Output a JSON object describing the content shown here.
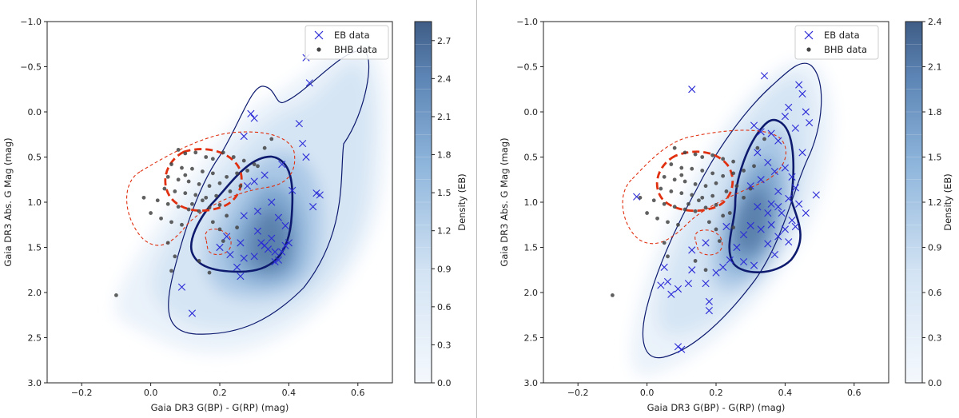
{
  "chart_data": [
    {
      "type": "scatter",
      "title": "",
      "xlabel": "Gaia DR3 G(BP) - G(RP) (mag)",
      "ylabel": "Gaia DR3 Abs. G Mag (mag)",
      "xlim": [
        -0.3,
        0.7
      ],
      "ylim": [
        3.0,
        -1.0
      ],
      "y_inverted": true,
      "x_ticks": [
        "−0.2",
        "0.0",
        "0.2",
        "0.4",
        "0.6"
      ],
      "x_tick_values": [
        -0.2,
        0.0,
        0.2,
        0.4,
        0.6
      ],
      "y_ticks": [
        "−1.0",
        "−0.5",
        "0.0",
        "0.5",
        "1.0",
        "1.5",
        "2.0",
        "2.5",
        "3.0"
      ],
      "y_tick_values": [
        -1.0,
        -0.5,
        0.0,
        0.5,
        1.0,
        1.5,
        2.0,
        2.5,
        3.0
      ],
      "legend": {
        "placement": "upper-right",
        "entries": [
          "EB data",
          "BHB data"
        ]
      },
      "colorbar": {
        "label": "Density (EB)",
        "range": [
          0.0,
          2.85
        ],
        "ticks": [
          "0.0",
          "0.3",
          "0.6",
          "0.9",
          "1.2",
          "1.5",
          "1.8",
          "2.1",
          "2.4",
          "2.7"
        ],
        "tick_values": [
          0.0,
          0.3,
          0.6,
          0.9,
          1.2,
          1.5,
          1.8,
          2.1,
          2.4,
          2.7
        ]
      },
      "colors": {
        "eb": "#2b2bd6",
        "bhb": "#444444",
        "eb_contour": "#0d1a6e",
        "bhb_contour": "#e03010",
        "cmap_low": "#f4f8fd",
        "cmap_high": "#3f5d86"
      },
      "series": [
        {
          "name": "EB data",
          "marker": "x",
          "points": [
            [
              0.45,
              -0.6
            ],
            [
              0.46,
              -0.32
            ],
            [
              0.29,
              0.02
            ],
            [
              0.3,
              0.07
            ],
            [
              0.27,
              0.27
            ],
            [
              0.43,
              0.13
            ],
            [
              0.44,
              0.35
            ],
            [
              0.45,
              0.5
            ],
            [
              0.38,
              0.58
            ],
            [
              0.41,
              0.87
            ],
            [
              0.48,
              0.9
            ],
            [
              0.49,
              0.92
            ],
            [
              0.47,
              1.05
            ],
            [
              0.33,
              0.7
            ],
            [
              0.3,
              0.77
            ],
            [
              0.28,
              0.82
            ],
            [
              0.35,
              1.0
            ],
            [
              0.31,
              1.1
            ],
            [
              0.27,
              1.15
            ],
            [
              0.37,
              1.17
            ],
            [
              0.39,
              1.26
            ],
            [
              0.31,
              1.32
            ],
            [
              0.22,
              1.38
            ],
            [
              0.26,
              1.45
            ],
            [
              0.2,
              1.5
            ],
            [
              0.23,
              1.58
            ],
            [
              0.33,
              1.48
            ],
            [
              0.36,
              1.55
            ],
            [
              0.38,
              1.55
            ],
            [
              0.3,
              1.6
            ],
            [
              0.27,
              1.62
            ],
            [
              0.37,
              1.64
            ],
            [
              0.35,
              1.4
            ],
            [
              0.32,
              1.45
            ],
            [
              0.4,
              1.45
            ],
            [
              0.25,
              1.72
            ],
            [
              0.26,
              1.82
            ],
            [
              0.09,
              1.94
            ],
            [
              0.12,
              2.23
            ],
            [
              0.34,
              1.52
            ],
            [
              0.39,
              1.48
            ],
            [
              0.36,
              1.66
            ]
          ]
        },
        {
          "name": "BHB data",
          "marker": "o",
          "points": [
            [
              0.08,
              0.42
            ],
            [
              0.1,
              0.46
            ],
            [
              0.13,
              0.45
            ],
            [
              0.16,
              0.5
            ],
            [
              0.18,
              0.52
            ],
            [
              0.21,
              0.45
            ],
            [
              0.24,
              0.5
            ],
            [
              0.27,
              0.54
            ],
            [
              0.06,
              0.58
            ],
            [
              0.09,
              0.62
            ],
            [
              0.12,
              0.63
            ],
            [
              0.15,
              0.66
            ],
            [
              0.18,
              0.68
            ],
            [
              0.22,
              0.72
            ],
            [
              0.25,
              0.68
            ],
            [
              0.28,
              0.65
            ],
            [
              0.05,
              0.72
            ],
            [
              0.08,
              0.75
            ],
            [
              0.11,
              0.77
            ],
            [
              0.14,
              0.8
            ],
            [
              0.17,
              0.82
            ],
            [
              0.2,
              0.79
            ],
            [
              0.04,
              0.85
            ],
            [
              0.07,
              0.88
            ],
            [
              0.1,
              0.9
            ],
            [
              0.13,
              0.92
            ],
            [
              0.16,
              0.95
            ],
            [
              0.19,
              0.93
            ],
            [
              0.23,
              0.88
            ],
            [
              0.26,
              0.82
            ],
            [
              0.02,
              0.98
            ],
            [
              0.05,
              1.02
            ],
            [
              0.08,
              1.05
            ],
            [
              0.11,
              1.08
            ],
            [
              0.14,
              1.1
            ],
            [
              0.17,
              1.06
            ],
            [
              0.2,
              1.03
            ],
            [
              -0.02,
              0.95
            ],
            [
              0.0,
              1.12
            ],
            [
              0.03,
              1.18
            ],
            [
              0.06,
              1.22
            ],
            [
              0.09,
              1.25
            ],
            [
              0.12,
              1.02
            ],
            [
              0.15,
              0.98
            ],
            [
              0.3,
              0.58
            ],
            [
              0.35,
              0.3
            ],
            [
              0.33,
              0.4
            ],
            [
              0.31,
              0.6
            ],
            [
              0.22,
              1.15
            ],
            [
              0.18,
              1.22
            ],
            [
              0.25,
              1.28
            ],
            [
              0.2,
              1.3
            ],
            [
              0.05,
              1.45
            ],
            [
              0.07,
              1.6
            ],
            [
              0.06,
              1.76
            ],
            [
              0.14,
              1.65
            ],
            [
              0.17,
              1.78
            ],
            [
              0.21,
              1.43
            ],
            [
              -0.1,
              2.03
            ],
            [
              0.1,
              0.7
            ]
          ]
        }
      ]
    },
    {
      "type": "scatter",
      "title": "",
      "xlabel": "Gaia DR3 G(BP) - G(RP) (mag)",
      "ylabel": "Gaia DR3 Abs. G Mag (mag)",
      "xlim": [
        -0.3,
        0.7
      ],
      "ylim": [
        3.0,
        -1.0
      ],
      "y_inverted": true,
      "x_ticks": [
        "−0.2",
        "0.0",
        "0.2",
        "0.4",
        "0.6"
      ],
      "x_tick_values": [
        -0.2,
        0.0,
        0.2,
        0.4,
        0.6
      ],
      "y_ticks": [
        "−1.0",
        "−0.5",
        "0.0",
        "0.5",
        "1.0",
        "1.5",
        "2.0",
        "2.5",
        "3.0"
      ],
      "y_tick_values": [
        -1.0,
        -0.5,
        0.0,
        0.5,
        1.0,
        1.5,
        2.0,
        2.5,
        3.0
      ],
      "legend": {
        "placement": "upper-right",
        "entries": [
          "EB data",
          "BHB data"
        ]
      },
      "colorbar": {
        "label": "Density (EB)",
        "range": [
          0.0,
          2.4
        ],
        "ticks": [
          "0.0",
          "0.3",
          "0.6",
          "0.9",
          "1.2",
          "1.5",
          "1.8",
          "2.1",
          "2.4"
        ],
        "tick_values": [
          0.0,
          0.3,
          0.6,
          0.9,
          1.2,
          1.5,
          1.8,
          2.1,
          2.4
        ]
      },
      "colors": {
        "eb": "#2b2bd6",
        "bhb": "#444444",
        "eb_contour": "#0d1a6e",
        "bhb_contour": "#e03010",
        "cmap_low": "#f4f8fd",
        "cmap_high": "#3f5d86"
      },
      "series": [
        {
          "name": "EB data",
          "marker": "x",
          "points": [
            [
              0.34,
              -0.4
            ],
            [
              0.13,
              -0.25
            ],
            [
              0.45,
              -0.2
            ],
            [
              0.44,
              -0.3
            ],
            [
              0.41,
              -0.05
            ],
            [
              0.4,
              0.05
            ],
            [
              0.43,
              0.18
            ],
            [
              0.46,
              0.0
            ],
            [
              0.47,
              0.12
            ],
            [
              0.31,
              0.15
            ],
            [
              0.33,
              0.22
            ],
            [
              0.36,
              0.24
            ],
            [
              0.38,
              0.32
            ],
            [
              0.45,
              0.45
            ],
            [
              0.32,
              0.45
            ],
            [
              0.35,
              0.56
            ],
            [
              0.37,
              0.66
            ],
            [
              0.4,
              0.62
            ],
            [
              0.42,
              0.72
            ],
            [
              0.33,
              0.75
            ],
            [
              0.3,
              0.82
            ],
            [
              0.43,
              0.84
            ],
            [
              0.38,
              0.88
            ],
            [
              0.41,
              0.96
            ],
            [
              0.44,
              1.02
            ],
            [
              0.36,
              1.02
            ],
            [
              0.32,
              1.05
            ],
            [
              0.35,
              1.12
            ],
            [
              0.39,
              1.12
            ],
            [
              0.46,
              1.12
            ],
            [
              0.49,
              0.92
            ],
            [
              0.42,
              1.2
            ],
            [
              0.36,
              1.25
            ],
            [
              0.33,
              1.3
            ],
            [
              0.3,
              1.26
            ],
            [
              0.28,
              1.36
            ],
            [
              0.38,
              1.38
            ],
            [
              0.41,
              1.44
            ],
            [
              0.35,
              1.46
            ],
            [
              0.26,
              1.5
            ],
            [
              0.24,
              1.64
            ],
            [
              0.28,
              1.66
            ],
            [
              0.31,
              1.7
            ],
            [
              0.22,
              1.72
            ],
            [
              0.2,
              1.78
            ],
            [
              0.17,
              1.9
            ],
            [
              0.12,
              1.9
            ],
            [
              0.13,
              1.75
            ],
            [
              0.09,
              1.96
            ],
            [
              0.06,
              1.88
            ],
            [
              0.05,
              1.72
            ],
            [
              0.04,
              1.92
            ],
            [
              0.07,
              2.02
            ],
            [
              0.18,
              2.1
            ],
            [
              0.18,
              2.2
            ],
            [
              0.09,
              2.6
            ],
            [
              0.1,
              2.63
            ],
            [
              0.13,
              1.53
            ],
            [
              0.17,
              1.45
            ],
            [
              0.23,
              1.27
            ],
            [
              -0.03,
              0.94
            ],
            [
              0.38,
              1.05
            ],
            [
              0.4,
              1.3
            ],
            [
              0.43,
              1.27
            ],
            [
              0.37,
              1.58
            ]
          ]
        },
        {
          "name": "BHB data",
          "marker": "o",
          "points": [
            [
              0.08,
              0.4
            ],
            [
              0.11,
              0.45
            ],
            [
              0.14,
              0.47
            ],
            [
              0.16,
              0.5
            ],
            [
              0.19,
              0.48
            ],
            [
              0.22,
              0.52
            ],
            [
              0.25,
              0.55
            ],
            [
              0.07,
              0.58
            ],
            [
              0.1,
              0.62
            ],
            [
              0.13,
              0.63
            ],
            [
              0.16,
              0.65
            ],
            [
              0.19,
              0.68
            ],
            [
              0.22,
              0.71
            ],
            [
              0.25,
              0.68
            ],
            [
              0.28,
              0.65
            ],
            [
              0.05,
              0.72
            ],
            [
              0.08,
              0.75
            ],
            [
              0.11,
              0.77
            ],
            [
              0.14,
              0.8
            ],
            [
              0.17,
              0.82
            ],
            [
              0.2,
              0.79
            ],
            [
              0.04,
              0.85
            ],
            [
              0.07,
              0.88
            ],
            [
              0.1,
              0.9
            ],
            [
              0.13,
              0.92
            ],
            [
              0.16,
              0.95
            ],
            [
              0.19,
              0.93
            ],
            [
              0.23,
              0.88
            ],
            [
              0.26,
              0.82
            ],
            [
              0.02,
              0.98
            ],
            [
              0.05,
              1.02
            ],
            [
              0.08,
              1.05
            ],
            [
              0.11,
              1.08
            ],
            [
              0.14,
              1.1
            ],
            [
              0.17,
              1.06
            ],
            [
              0.2,
              1.03
            ],
            [
              -0.02,
              0.95
            ],
            [
              0.0,
              1.12
            ],
            [
              0.03,
              1.18
            ],
            [
              0.06,
              1.22
            ],
            [
              0.09,
              1.25
            ],
            [
              0.12,
              1.02
            ],
            [
              0.15,
              0.98
            ],
            [
              0.31,
              0.6
            ],
            [
              0.34,
              0.3
            ],
            [
              0.32,
              0.4
            ],
            [
              0.22,
              1.15
            ],
            [
              0.18,
              1.22
            ],
            [
              0.25,
              1.28
            ],
            [
              0.2,
              1.3
            ],
            [
              0.05,
              1.45
            ],
            [
              0.06,
              1.6
            ],
            [
              0.14,
              1.65
            ],
            [
              0.17,
              1.75
            ],
            [
              0.21,
              1.43
            ],
            [
              -0.1,
              2.03
            ],
            [
              0.1,
              0.7
            ],
            [
              0.3,
              0.85
            ],
            [
              0.28,
              0.95
            ],
            [
              0.24,
              1.12
            ]
          ]
        }
      ]
    }
  ]
}
